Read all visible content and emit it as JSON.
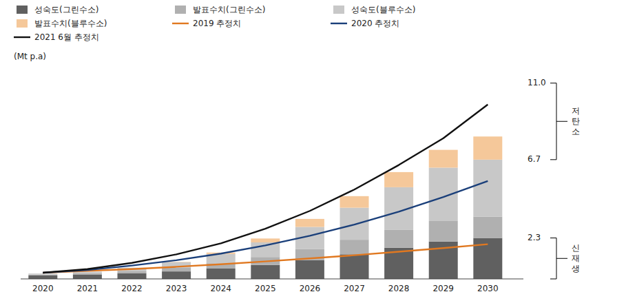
{
  "chart_data": {
    "type": "bar",
    "stacked": true,
    "x": [
      2020,
      2021,
      2022,
      2023,
      2024,
      2025,
      2026,
      2027,
      2028,
      2029,
      2030
    ],
    "xlim": [
      2019.5,
      2030.8
    ],
    "xticks": [
      2020,
      2021,
      2022,
      2023,
      2024,
      2025,
      2026,
      2027,
      2028,
      2029,
      2030
    ],
    "ylim": [
      0,
      11.8
    ],
    "tick_labels": "x",
    "ylabel": "(Mt p.a)",
    "legend": "top",
    "series": [
      {
        "name": "성숙도(그린수소)",
        "type": "bar",
        "color": "#606060",
        "values": [
          0.2,
          0.25,
          0.32,
          0.42,
          0.58,
          0.78,
          1.05,
          1.38,
          1.75,
          2.1,
          2.3
        ]
      },
      {
        "name": "발표수치(그린수소)",
        "type": "bar",
        "color": "#b0b0b0",
        "values": [
          0.05,
          0.08,
          0.13,
          0.2,
          0.3,
          0.45,
          0.62,
          0.82,
          1.0,
          1.15,
          1.2
        ]
      },
      {
        "name": "성숙도(블루수소)",
        "type": "bar",
        "color": "#c8c8c8",
        "values": [
          0.05,
          0.08,
          0.18,
          0.32,
          0.52,
          0.82,
          1.25,
          1.8,
          2.4,
          3.0,
          3.2
        ]
      },
      {
        "name": "발표수치(블루수소)",
        "type": "bar",
        "color": "#f5c89a",
        "values": [
          0.0,
          0.0,
          0.0,
          0.02,
          0.08,
          0.22,
          0.45,
          0.65,
          0.85,
          1.0,
          1.3
        ]
      },
      {
        "name": "2019 추정치",
        "type": "line",
        "color": "#e07820",
        "values": [
          0.35,
          0.45,
          0.55,
          0.68,
          0.82,
          0.98,
          1.15,
          1.33,
          1.53,
          1.73,
          1.95
        ]
      },
      {
        "name": "2020 추정치",
        "type": "line",
        "color": "#1a3f7a",
        "values": [
          0.35,
          0.5,
          0.75,
          1.05,
          1.42,
          1.88,
          2.42,
          3.05,
          3.78,
          4.6,
          5.5
        ]
      },
      {
        "name": "2021 6월 추정치",
        "type": "line",
        "color": "#111111",
        "values": [
          0.35,
          0.55,
          0.9,
          1.38,
          2.0,
          2.82,
          3.82,
          5.02,
          6.4,
          7.9,
          9.8
        ]
      }
    ],
    "annotations": [
      {
        "text": "11.0",
        "y": 11.0
      },
      {
        "text": "6.7",
        "y": 6.7
      },
      {
        "text": "2.3",
        "y": 2.3
      }
    ],
    "brackets": [
      {
        "label": "저탄소",
        "from": 6.7,
        "to": 11.0
      },
      {
        "label": "신재생",
        "from": 0.0,
        "to": 2.3
      }
    ]
  }
}
